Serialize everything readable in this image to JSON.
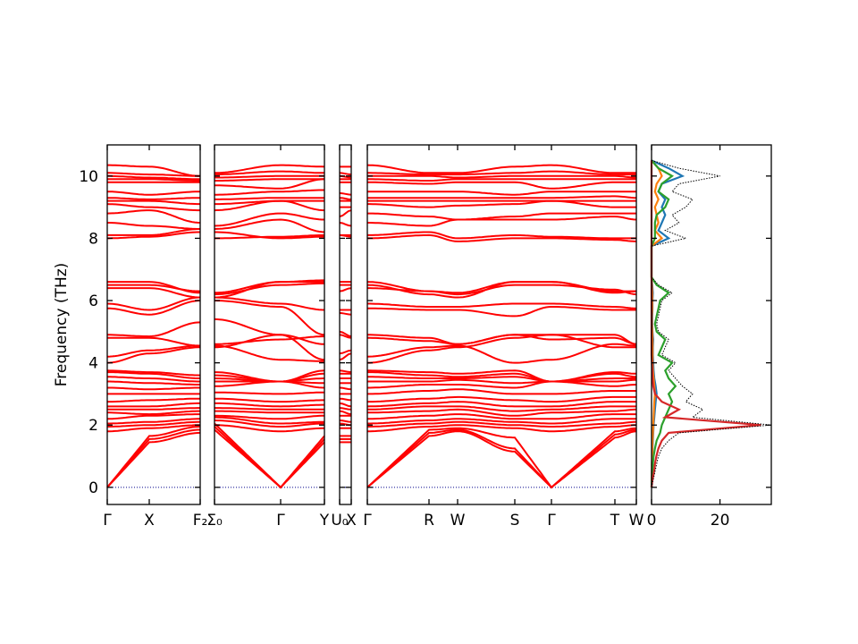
{
  "chart_data": [
    {
      "type": "line",
      "ylabel": "Frequency (THz)",
      "ylim": [
        -0.55,
        11
      ],
      "yticks": [
        0,
        2,
        4,
        6,
        8,
        10
      ],
      "band_color": "#ff0000",
      "zero_line_color": "#00008b",
      "kpoints": [
        "Γ",
        "X",
        "F₂",
        "Σ₀",
        "Γ",
        "Y",
        "U₀",
        "X",
        "Γ",
        "R",
        "W",
        "S",
        "Γ",
        "T",
        "W"
      ],
      "segments": [
        {
          "labels": [
            "Γ",
            "X",
            "F₂"
          ],
          "start": 0
        },
        {
          "labels": [
            "Σ₀",
            "Γ",
            "Y"
          ],
          "start": 3
        },
        {
          "labels": [
            "U₀",
            "X"
          ],
          "start": 6
        },
        {
          "labels": [
            "Γ",
            "R",
            "W",
            "S",
            "Γ",
            "T",
            "W"
          ],
          "start": 8
        }
      ],
      "bands": [
        [
          0,
          1.45,
          1.75,
          1.85,
          0,
          1.45,
          1.45,
          1.45,
          0,
          1.65,
          1.8,
          1.15,
          0,
          1.6,
          1.8
        ],
        [
          0,
          1.55,
          1.85,
          1.95,
          0,
          1.55,
          1.55,
          1.55,
          0,
          1.75,
          1.85,
          1.25,
          0,
          1.7,
          1.85
        ],
        [
          0,
          1.65,
          1.95,
          2.05,
          0,
          1.65,
          1.65,
          1.65,
          0,
          1.85,
          1.9,
          1.6,
          0,
          1.8,
          1.9
        ],
        [
          1.8,
          1.9,
          2.0,
          2.0,
          1.8,
          1.9,
          1.9,
          1.9,
          1.8,
          1.95,
          2.0,
          1.9,
          1.8,
          1.95,
          2.0
        ],
        [
          1.95,
          2.0,
          2.1,
          2.15,
          1.95,
          2.05,
          2.05,
          2.0,
          1.95,
          2.05,
          2.1,
          2.0,
          1.95,
          2.05,
          2.1
        ],
        [
          2.05,
          2.1,
          2.2,
          2.25,
          2.05,
          2.1,
          2.15,
          2.1,
          2.05,
          2.15,
          2.2,
          2.1,
          2.05,
          2.2,
          2.2
        ],
        [
          2.2,
          2.3,
          2.35,
          2.3,
          2.2,
          2.3,
          2.3,
          2.3,
          2.2,
          2.3,
          2.35,
          2.2,
          2.2,
          2.35,
          2.35
        ],
        [
          2.4,
          2.35,
          2.45,
          2.45,
          2.4,
          2.4,
          2.45,
          2.35,
          2.4,
          2.45,
          2.5,
          2.3,
          2.4,
          2.45,
          2.5
        ],
        [
          2.5,
          2.5,
          2.55,
          2.55,
          2.5,
          2.5,
          2.55,
          2.5,
          2.5,
          2.6,
          2.6,
          2.45,
          2.5,
          2.6,
          2.6
        ],
        [
          2.6,
          2.6,
          2.7,
          2.7,
          2.6,
          2.65,
          2.7,
          2.6,
          2.6,
          2.7,
          2.75,
          2.6,
          2.6,
          2.75,
          2.75
        ],
        [
          2.75,
          2.8,
          2.85,
          2.85,
          2.75,
          2.8,
          2.85,
          2.8,
          2.75,
          2.85,
          2.9,
          2.8,
          2.75,
          2.9,
          2.9
        ],
        [
          3.0,
          3.0,
          3.0,
          3.05,
          3.0,
          3.05,
          3.0,
          3.0,
          3.0,
          3.1,
          3.15,
          3.0,
          3.0,
          3.1,
          3.1
        ],
        [
          3.2,
          3.15,
          3.2,
          3.25,
          3.4,
          3.2,
          3.2,
          3.15,
          3.2,
          3.3,
          3.3,
          3.2,
          3.4,
          3.25,
          3.3
        ],
        [
          3.4,
          3.35,
          3.3,
          3.4,
          3.4,
          3.35,
          3.35,
          3.35,
          3.4,
          3.4,
          3.45,
          3.35,
          3.4,
          3.4,
          3.45
        ],
        [
          3.55,
          3.5,
          3.4,
          3.5,
          3.4,
          3.5,
          3.5,
          3.5,
          3.55,
          3.5,
          3.5,
          3.55,
          3.4,
          3.5,
          3.5
        ],
        [
          3.7,
          3.65,
          3.5,
          3.6,
          3.4,
          3.65,
          3.65,
          3.65,
          3.7,
          3.6,
          3.55,
          3.65,
          3.4,
          3.65,
          3.55
        ],
        [
          3.75,
          3.7,
          3.6,
          3.7,
          3.4,
          3.75,
          3.75,
          3.7,
          3.75,
          3.7,
          3.65,
          3.75,
          3.4,
          3.7,
          3.65
        ],
        [
          4.0,
          4.3,
          4.5,
          4.5,
          4.9,
          4.1,
          4.1,
          4.3,
          4.0,
          4.4,
          4.5,
          4.8,
          4.9,
          4.5,
          4.5
        ],
        [
          4.2,
          4.4,
          4.55,
          4.55,
          4.1,
          4.05,
          4.3,
          4.4,
          4.2,
          4.5,
          4.55,
          4.0,
          4.1,
          4.6,
          4.55
        ],
        [
          4.8,
          4.8,
          4.55,
          4.6,
          4.75,
          4.85,
          4.9,
          4.8,
          4.8,
          4.7,
          4.6,
          4.9,
          4.75,
          4.8,
          4.6
        ],
        [
          4.9,
          4.85,
          5.3,
          5.4,
          4.9,
          4.6,
          5.0,
          4.85,
          4.9,
          4.8,
          4.6,
          4.9,
          4.9,
          4.9,
          4.6
        ],
        [
          5.75,
          5.55,
          6.0,
          6.0,
          5.8,
          4.9,
          5.6,
          5.55,
          5.75,
          5.7,
          5.7,
          5.5,
          5.8,
          5.7,
          5.7
        ],
        [
          5.9,
          5.7,
          6.1,
          6.1,
          5.9,
          5.7,
          5.7,
          5.7,
          5.9,
          5.8,
          5.8,
          5.9,
          5.9,
          5.8,
          5.75
        ],
        [
          6.4,
          6.4,
          6.1,
          6.2,
          6.5,
          6.55,
          6.3,
          6.4,
          6.4,
          6.3,
          6.2,
          6.5,
          6.5,
          6.35,
          6.2
        ],
        [
          6.5,
          6.5,
          6.3,
          6.25,
          6.6,
          6.6,
          6.5,
          6.5,
          6.5,
          6.2,
          6.1,
          6.6,
          6.6,
          6.3,
          6.3
        ],
        [
          6.6,
          6.6,
          6.25,
          6.1,
          6.6,
          6.65,
          6.6,
          6.6,
          6.6,
          6.3,
          6.25,
          6.6,
          6.6,
          6.25,
          6.3
        ],
        [
          8.0,
          8.05,
          8.2,
          8.2,
          8.0,
          8.05,
          8.1,
          8.05,
          8.0,
          8.1,
          7.9,
          8.0,
          8.0,
          7.95,
          7.9
        ],
        [
          8.1,
          8.1,
          8.3,
          8.0,
          8.05,
          8.1,
          8.1,
          8.1,
          8.1,
          8.2,
          8.0,
          8.1,
          8.05,
          8.0,
          8.0
        ],
        [
          8.5,
          8.4,
          8.3,
          8.3,
          8.6,
          8.2,
          8.5,
          8.4,
          8.5,
          8.4,
          8.6,
          8.6,
          8.6,
          8.7,
          8.6
        ],
        [
          8.8,
          8.9,
          8.5,
          8.4,
          8.8,
          8.6,
          8.7,
          8.9,
          8.8,
          8.7,
          8.6,
          8.7,
          8.8,
          8.8,
          8.8
        ],
        [
          9.1,
          9.0,
          8.9,
          8.9,
          9.2,
          8.9,
          9.0,
          9.0,
          9.1,
          9.0,
          9.05,
          9.1,
          9.2,
          9.0,
          9.0
        ],
        [
          9.2,
          9.2,
          9.1,
          9.1,
          9.2,
          9.2,
          9.2,
          9.2,
          9.2,
          9.2,
          9.2,
          9.2,
          9.2,
          9.2,
          9.2
        ],
        [
          9.3,
          9.25,
          9.3,
          9.25,
          9.3,
          9.3,
          9.3,
          9.25,
          9.3,
          9.3,
          9.3,
          9.3,
          9.3,
          9.35,
          9.3
        ],
        [
          9.5,
          9.4,
          9.5,
          9.4,
          9.5,
          9.55,
          9.45,
          9.4,
          9.5,
          9.5,
          9.5,
          9.4,
          9.5,
          9.5,
          9.5
        ],
        [
          9.8,
          9.8,
          9.8,
          9.7,
          9.6,
          9.9,
          9.8,
          9.8,
          9.8,
          9.75,
          9.8,
          9.8,
          9.6,
          9.8,
          9.8
        ],
        [
          9.9,
          9.9,
          9.85,
          9.85,
          9.9,
          9.9,
          9.9,
          9.9,
          9.9,
          9.85,
          9.9,
          9.9,
          9.9,
          9.9,
          9.9
        ],
        [
          10.0,
          9.95,
          9.9,
          9.95,
          10.0,
          10.0,
          10.0,
          9.95,
          10.0,
          10.0,
          9.95,
          10.0,
          10.0,
          10.0,
          9.95
        ],
        [
          10.1,
          10.05,
          10.0,
          10.05,
          10.15,
          10.1,
          10.1,
          10.05,
          10.1,
          10.05,
          10.05,
          10.1,
          10.15,
          10.05,
          10.05
        ],
        [
          10.35,
          10.3,
          10.0,
          10.1,
          10.35,
          10.3,
          10.3,
          10.3,
          10.35,
          10.1,
          10.1,
          10.3,
          10.35,
          10.1,
          10.1
        ]
      ]
    },
    {
      "type": "line",
      "orientation": "horizontal-dos",
      "xlim": [
        0,
        35
      ],
      "xticks": [
        0,
        20
      ],
      "ylim": [
        -0.55,
        11
      ],
      "frequency": [
        0,
        0.25,
        0.5,
        0.75,
        1,
        1.25,
        1.5,
        1.75,
        2,
        2.25,
        2.5,
        2.75,
        3,
        3.25,
        3.5,
        3.75,
        4,
        4.25,
        4.5,
        4.75,
        5,
        5.25,
        5.5,
        5.75,
        6,
        6.25,
        6.5,
        6.75,
        7,
        7.25,
        7.5,
        7.75,
        8,
        8.25,
        8.5,
        8.75,
        9,
        9.25,
        9.5,
        9.75,
        10,
        10.25,
        10.5
      ],
      "series": [
        {
          "color": "#000000",
          "style": "dotted",
          "values": [
            0,
            0.5,
            1,
            1.5,
            2,
            3,
            5,
            8,
            35,
            12,
            15,
            10,
            12,
            9,
            7,
            5,
            7,
            3,
            4,
            5,
            2,
            1.5,
            2,
            2.5,
            3,
            6,
            2,
            0,
            0,
            0,
            0,
            0,
            10,
            4,
            8,
            6,
            10,
            12,
            6,
            8,
            20,
            8,
            0
          ]
        },
        {
          "color": "#1f77b4",
          "style": "solid",
          "values": [
            0,
            0.1,
            0.1,
            0.2,
            0.2,
            0.3,
            0.4,
            0.5,
            0.6,
            0.8,
            1,
            1.2,
            1.5,
            1.2,
            0.8,
            0.6,
            0.5,
            0.4,
            0.4,
            0.5,
            0.3,
            0.2,
            0.2,
            0.3,
            0.3,
            0.4,
            0.2,
            0,
            0,
            0,
            0,
            0,
            5,
            2,
            3,
            4,
            3,
            4,
            2,
            3,
            9,
            5,
            0
          ]
        },
        {
          "color": "#ff7f0e",
          "style": "solid",
          "values": [
            0,
            0.05,
            0.1,
            0.1,
            0.2,
            0.2,
            0.3,
            0.4,
            0.5,
            0.6,
            0.7,
            0.8,
            1,
            0.8,
            0.6,
            0.4,
            0.3,
            0.3,
            0.3,
            0.3,
            0.2,
            0.1,
            0.1,
            0.2,
            0.2,
            0.2,
            0.1,
            0,
            0,
            0,
            0,
            0,
            3,
            1,
            2,
            1.5,
            1,
            2,
            1,
            1.5,
            3,
            2,
            0
          ]
        },
        {
          "color": "#2ca02c",
          "style": "solid",
          "values": [
            0,
            0.1,
            0.2,
            0.4,
            0.6,
            1,
            1.5,
            2.5,
            3,
            4,
            5,
            6,
            5,
            7,
            5,
            4,
            6,
            2,
            3,
            4,
            1.5,
            1,
            1.5,
            2,
            2.5,
            5,
            1.5,
            0,
            0,
            0,
            0,
            0,
            1,
            1,
            1,
            1.5,
            4,
            5,
            2,
            3,
            6,
            2,
            0
          ]
        },
        {
          "color": "#d62728",
          "style": "solid",
          "values": [
            0,
            0.3,
            0.7,
            1,
            1.4,
            2,
            3,
            5,
            32,
            4,
            8,
            3,
            1,
            0.5,
            0.3,
            0.2,
            0.1,
            0,
            0,
            0,
            0,
            0,
            0,
            0,
            0,
            0,
            0,
            0,
            0,
            0,
            0,
            0,
            0,
            0,
            0,
            0,
            0,
            0,
            0,
            0,
            0,
            0,
            0
          ]
        }
      ]
    }
  ]
}
